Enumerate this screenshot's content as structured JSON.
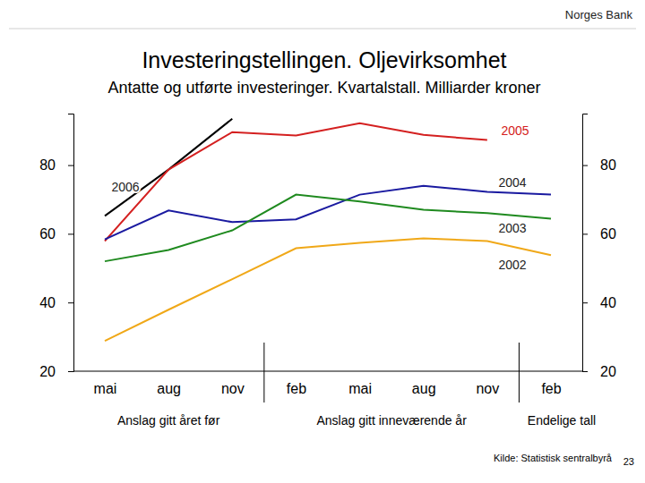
{
  "chart_data": {
    "type": "line",
    "header": "Norges Bank",
    "title": "Investeringstellingen. Oljevirksomhet",
    "subtitle": "Antatte og utførte investeringer. Kvartalstall. Milliarder kroner",
    "categories": [
      "mai",
      "aug",
      "nov",
      "feb",
      "mai",
      "aug",
      "nov",
      "feb"
    ],
    "group_labels": [
      "Anslag gitt året før",
      "Anslag gitt inneværende år",
      "Endelige tall"
    ],
    "series": [
      {
        "name": "2006",
        "color": "#000000",
        "values": [
          65.2,
          78.7,
          93.5,
          null,
          null,
          null,
          null,
          null
        ]
      },
      {
        "name": "2005",
        "color": "#d42020",
        "values": [
          57.9,
          78.7,
          89.6,
          88.6,
          92.2,
          88.8,
          87.3,
          null
        ]
      },
      {
        "name": "2004",
        "color": "#1a1aa0",
        "values": [
          58.4,
          66.8,
          63.4,
          64.2,
          71.4,
          74.0,
          72.2,
          71.4
        ]
      },
      {
        "name": "2003",
        "color": "#1f8a1f",
        "values": [
          52.0,
          55.3,
          61.0,
          71.4,
          69.4,
          67.0,
          66.0,
          64.4
        ]
      },
      {
        "name": "2002",
        "color": "#f0a818",
        "values": [
          28.8,
          37.9,
          46.8,
          55.8,
          57.4,
          58.7,
          57.9,
          53.8
        ]
      }
    ],
    "ylim": [
      20,
      95
    ],
    "yticks": [
      20,
      40,
      60,
      80
    ],
    "source": "Kilde: Statistisk sentralbyrå",
    "page_number": "23"
  }
}
